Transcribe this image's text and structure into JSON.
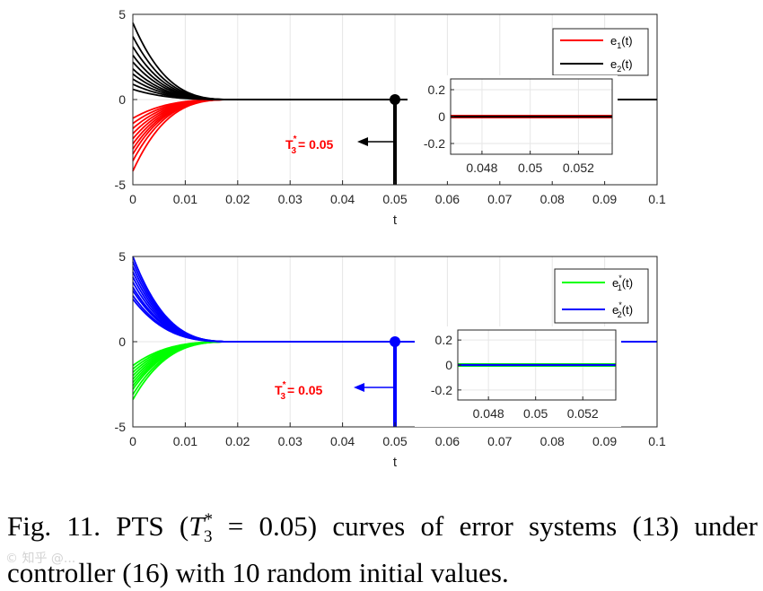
{
  "figure": {
    "caption_prefix": "Fig. 11. PTS (",
    "caption_math_T": "T",
    "caption_math_sup": "*",
    "caption_math_sub": "3",
    "caption_math_rest": " = 0.05)",
    "caption_suffix": " curves of error systems (13) under controller (16) with 10 random initial values.",
    "watermark": "© 知乎 @..."
  },
  "chart_data": [
    {
      "type": "line",
      "xlim": [
        0,
        0.1
      ],
      "ylim": [
        -5,
        5
      ],
      "xticks": [
        0,
        0.01,
        0.02,
        0.03,
        0.04,
        0.05,
        0.06,
        0.07,
        0.08,
        0.09,
        0.1
      ],
      "xtick_labels": [
        "0",
        "0.01",
        "0.02",
        "0.03",
        "0.04",
        "0.05",
        "0.06",
        "0.07",
        "0.08",
        "0.09",
        "0.1"
      ],
      "yticks": [
        -5,
        0,
        5
      ],
      "ytick_labels": [
        "-5",
        "0",
        "5"
      ],
      "xlabel": "t",
      "grid": true,
      "legend_position": "top-right",
      "settling_time": 0.05,
      "decay_time": 0.02,
      "series": [
        {
          "name": "e1(t)",
          "label_base": "e",
          "label_sub": "1",
          "label_sup": "",
          "label_tail": "(t)",
          "color": "#ff0000",
          "initial_values": [
            -4.2,
            -3.6,
            -3.2,
            -2.9,
            -2.6,
            -2.3,
            -2.0,
            -1.7,
            -1.4,
            -1.1
          ]
        },
        {
          "name": "e2(t)",
          "label_base": "e",
          "label_sub": "2",
          "label_sup": "",
          "label_tail": "(t)",
          "color": "#000000",
          "initial_values": [
            4.5,
            3.7,
            3.1,
            2.6,
            2.2,
            1.8,
            1.5,
            1.2,
            0.9,
            0.6
          ]
        }
      ],
      "marker": {
        "x": 0.05,
        "y": 0,
        "color": "#000000"
      },
      "annotation": {
        "T": "T",
        "sup": "*",
        "sub": "3",
        "text": "= 0.05",
        "color": "#ff0000",
        "arrow_color": "#000000"
      },
      "inset": {
        "xlim": [
          0.0467,
          0.0534
        ],
        "ylim": [
          -0.28,
          0.28
        ],
        "xticks": [
          0.048,
          0.05,
          0.052
        ],
        "xtick_labels": [
          "0.048",
          "0.05",
          "0.052"
        ],
        "yticks": [
          -0.2,
          0,
          0.2
        ],
        "ytick_labels": [
          "-0.2",
          "0",
          "0.2"
        ]
      }
    },
    {
      "type": "line",
      "xlim": [
        0,
        0.1
      ],
      "ylim": [
        -5,
        5
      ],
      "xticks": [
        0,
        0.01,
        0.02,
        0.03,
        0.04,
        0.05,
        0.06,
        0.07,
        0.08,
        0.09,
        0.1
      ],
      "xtick_labels": [
        "0",
        "0.01",
        "0.02",
        "0.03",
        "0.04",
        "0.05",
        "0.06",
        "0.07",
        "0.08",
        "0.09",
        "0.1"
      ],
      "yticks": [
        -5,
        0,
        5
      ],
      "ytick_labels": [
        "-5",
        "0",
        "5"
      ],
      "xlabel": "t",
      "grid": true,
      "legend_position": "top-right",
      "settling_time": 0.05,
      "decay_time": 0.02,
      "series": [
        {
          "name": "e1*(t)",
          "label_base": "e",
          "label_sub": "1",
          "label_sup": "*",
          "label_tail": "(t)",
          "color": "#00ff00",
          "initial_values": [
            -3.4,
            -3.1,
            -2.8,
            -2.6,
            -2.4,
            -2.2,
            -2.0,
            -1.8,
            -1.6,
            -1.4
          ]
        },
        {
          "name": "e2*(t)",
          "label_base": "e",
          "label_sub": "2",
          "label_sup": "*",
          "label_tail": "(t)",
          "color": "#0000ff",
          "initial_values": [
            5.0,
            4.7,
            4.4,
            4.1,
            3.8,
            3.5,
            3.2,
            3.0,
            2.7,
            2.5
          ]
        }
      ],
      "marker": {
        "x": 0.05,
        "y": 0,
        "color": "#0000ff"
      },
      "annotation": {
        "T": "T",
        "sup": "*",
        "sub": "3",
        "text": "= 0.05",
        "color": "#ff0000",
        "arrow_color": "#0000ff"
      },
      "inset": {
        "xlim": [
          0.0467,
          0.0534
        ],
        "ylim": [
          -0.28,
          0.28
        ],
        "xticks": [
          0.048,
          0.05,
          0.052
        ],
        "xtick_labels": [
          "0.048",
          "0.05",
          "0.052"
        ],
        "yticks": [
          -0.2,
          0,
          0.2
        ],
        "ytick_labels": [
          "-0.2",
          "0",
          "0.2"
        ]
      }
    }
  ]
}
